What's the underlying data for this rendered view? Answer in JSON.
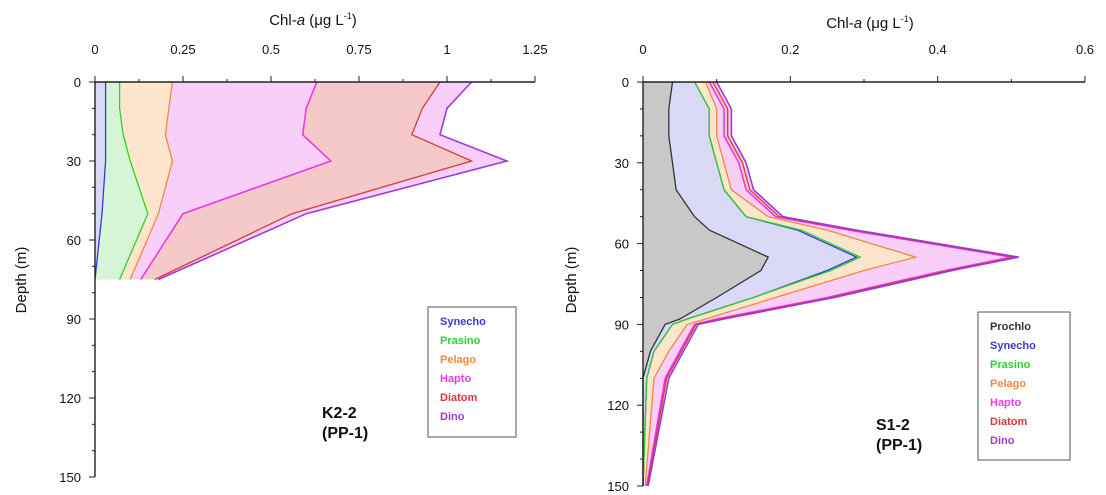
{
  "colors": {
    "Prochlo": "#333333",
    "Synecho": "#3a3ad0",
    "Prasino": "#2fd12f",
    "Pelago": "#ee8a3a",
    "Hapto": "#e83ae8",
    "Diatom": "#d83838",
    "Dino": "#9c3ad8",
    "fill_prochlo": "#c8c8c8",
    "fill_synecho": "#d9d9f6",
    "fill_prasino": "#d6f4d6",
    "fill_pelago": "#fbe5cc",
    "fill_hapto": "#f8cff8",
    "fill_diatom": "#f6c9c9"
  },
  "chart_data": [
    {
      "id": "k2",
      "type": "area",
      "title": "",
      "xlabel_prefix": "Chl-",
      "xlabel_italic": "a",
      "xlabel_suffix": " (μg L",
      "xlabel_sup": "-1",
      "xlabel_close": ")",
      "ylabel": "Depth (m)",
      "xlim": [
        0,
        1.25
      ],
      "ylim": [
        0,
        150
      ],
      "x_ticks": [
        "0",
        "0.25",
        "0.5",
        "0.75",
        "1",
        "1.25"
      ],
      "y_ticks": [
        "0",
        "30",
        "60",
        "90",
        "120",
        "150"
      ],
      "station_line1": "K2-2",
      "station_line2": "(PP-1)",
      "legend": [
        "Synecho",
        "Prasino",
        "Pelago",
        "Hapto",
        "Diatom",
        "Dino"
      ],
      "depth": [
        0,
        10,
        20,
        30,
        50,
        75
      ],
      "series": [
        {
          "name": "Synecho",
          "cumulative": [
            0.03,
            0.03,
            0.03,
            0.03,
            0.02,
            0.0
          ]
        },
        {
          "name": "Prasino",
          "cumulative": [
            0.07,
            0.07,
            0.08,
            0.1,
            0.15,
            0.07
          ]
        },
        {
          "name": "Pelago",
          "cumulative": [
            0.22,
            0.21,
            0.2,
            0.22,
            0.18,
            0.1
          ]
        },
        {
          "name": "Hapto",
          "cumulative": [
            0.63,
            0.6,
            0.59,
            0.67,
            0.25,
            0.13
          ]
        },
        {
          "name": "Diatom",
          "cumulative": [
            0.98,
            0.93,
            0.9,
            1.07,
            0.56,
            0.17
          ]
        },
        {
          "name": "Dino",
          "cumulative": [
            1.07,
            1.0,
            0.98,
            1.17,
            0.6,
            0.18
          ]
        }
      ]
    },
    {
      "id": "s1",
      "type": "area",
      "title": "",
      "xlabel_prefix": "Chl-",
      "xlabel_italic": "a",
      "xlabel_suffix": " (μg L",
      "xlabel_sup": "-1",
      "xlabel_close": ")",
      "ylabel": "Depth (m)",
      "xlim": [
        0,
        0.6
      ],
      "ylim": [
        0,
        150
      ],
      "x_ticks": [
        "0",
        "0.2",
        "0.4",
        "0.6"
      ],
      "y_ticks": [
        "0",
        "30",
        "60",
        "90",
        "120",
        "150"
      ],
      "station_line1": "S1-2",
      "station_line2": "(PP-1)",
      "legend": [
        "Prochlo",
        "Synecho",
        "Prasino",
        "Pelago",
        "Hapto",
        "Diatom",
        "Dino"
      ],
      "depth": [
        0,
        10,
        20,
        30,
        40,
        50,
        55,
        65,
        70,
        80,
        88,
        90,
        100,
        110,
        150
      ],
      "series": [
        {
          "name": "Prochlo",
          "cumulative": [
            0.04,
            0.035,
            0.035,
            0.04,
            0.045,
            0.07,
            0.09,
            0.17,
            0.16,
            0.1,
            0.05,
            0.03,
            0.01,
            0.0,
            0.0
          ]
        },
        {
          "name": "Synecho",
          "cumulative": [
            0.07,
            0.09,
            0.09,
            0.1,
            0.11,
            0.14,
            0.21,
            0.29,
            0.25,
            0.15,
            0.06,
            0.04,
            0.015,
            0.005,
            0.0
          ]
        },
        {
          "name": "Prasino",
          "cumulative": [
            0.07,
            0.09,
            0.09,
            0.1,
            0.11,
            0.14,
            0.215,
            0.295,
            0.255,
            0.15,
            0.06,
            0.04,
            0.015,
            0.005,
            0.0
          ]
        },
        {
          "name": "Pelago",
          "cumulative": [
            0.085,
            0.1,
            0.1,
            0.11,
            0.12,
            0.17,
            0.25,
            0.37,
            0.3,
            0.18,
            0.085,
            0.06,
            0.035,
            0.015,
            0.003
          ]
        },
        {
          "name": "Hapto",
          "cumulative": [
            0.09,
            0.11,
            0.11,
            0.13,
            0.14,
            0.18,
            0.28,
            0.5,
            0.41,
            0.25,
            0.1,
            0.07,
            0.05,
            0.03,
            0.005
          ]
        },
        {
          "name": "Diatom",
          "cumulative": [
            0.095,
            0.115,
            0.115,
            0.135,
            0.145,
            0.185,
            0.285,
            0.505,
            0.415,
            0.255,
            0.105,
            0.072,
            0.052,
            0.032,
            0.006
          ]
        },
        {
          "name": "Dino",
          "cumulative": [
            0.1,
            0.12,
            0.12,
            0.14,
            0.15,
            0.19,
            0.29,
            0.51,
            0.42,
            0.26,
            0.11,
            0.075,
            0.055,
            0.035,
            0.007
          ]
        }
      ]
    }
  ]
}
